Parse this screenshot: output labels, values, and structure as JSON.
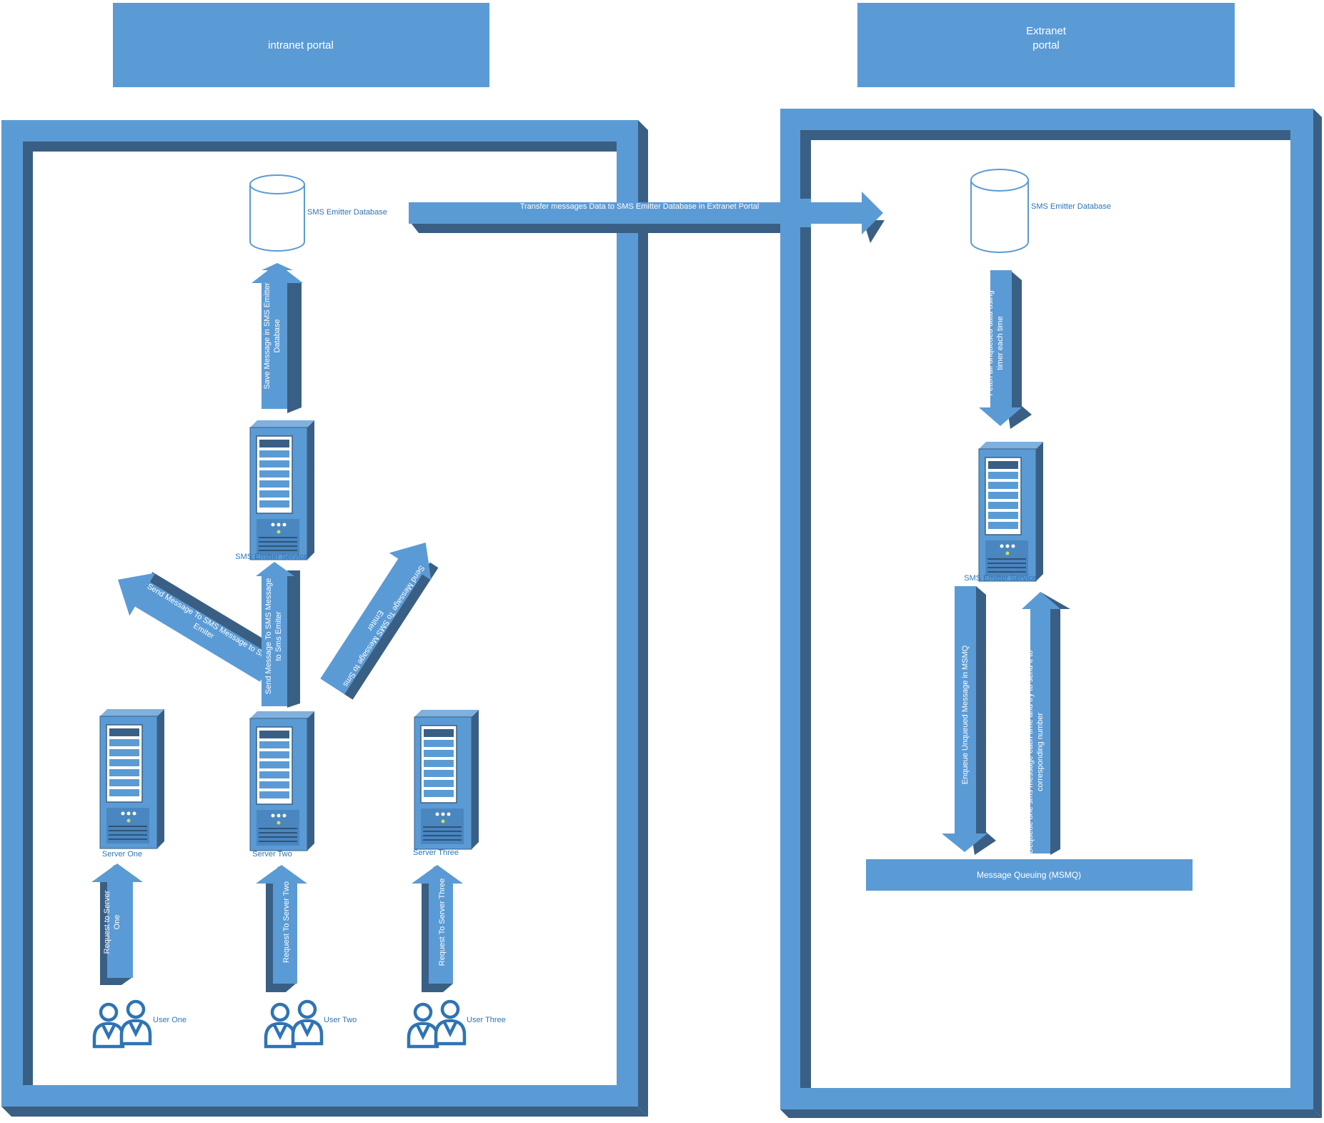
{
  "colors": {
    "primary": "#5B9BD5",
    "dark": "#3A5F85",
    "label": "#2E74B5",
    "white": "#ffffff"
  },
  "banners": {
    "intranet": {
      "lines": [
        "intranet portal"
      ]
    },
    "extranet": {
      "lines": [
        "Extranet",
        "portal"
      ]
    }
  },
  "intranet": {
    "database_label": "SMS Emitter Database",
    "service_label": "SMS Emitter Service",
    "servers": [
      "Server One",
      "Server Two",
      "Server Three"
    ],
    "users": [
      "User One",
      "User Two",
      "User Three"
    ],
    "arrows": {
      "save": [
        "Save Message in SMS Emitter",
        "Database"
      ],
      "send_left": [
        "Send Message To SMS Message to Sms",
        "Emiter"
      ],
      "send_middle": [
        "Send Message To SMS Message",
        "to Sms Emiter"
      ],
      "send_right": [
        "Send Message To SMS Message to Sms",
        "Emiter"
      ],
      "request_one": [
        "Request to Server",
        "One"
      ],
      "request_two": [
        "Request To Server Two"
      ],
      "request_three": [
        "Request To Server Three"
      ]
    }
  },
  "transfer_label": "Transfer messages Data to SMS Emitter Database in Extranet Portal",
  "extranet": {
    "database_label": "SMS Emitter Database",
    "service_label": "SMS Emitter Service",
    "queue_label": "Message Queuing (MSMQ)",
    "arrows": {
      "fetch": [
        "Fetch all unqueued data using",
        "timer each time"
      ],
      "enqueue": [
        "Enqueue Unqueued Message in MSMQ"
      ],
      "dequeue": [
        "Dequeue one sms message each time and try to send it to",
        "corresponding number"
      ]
    }
  }
}
